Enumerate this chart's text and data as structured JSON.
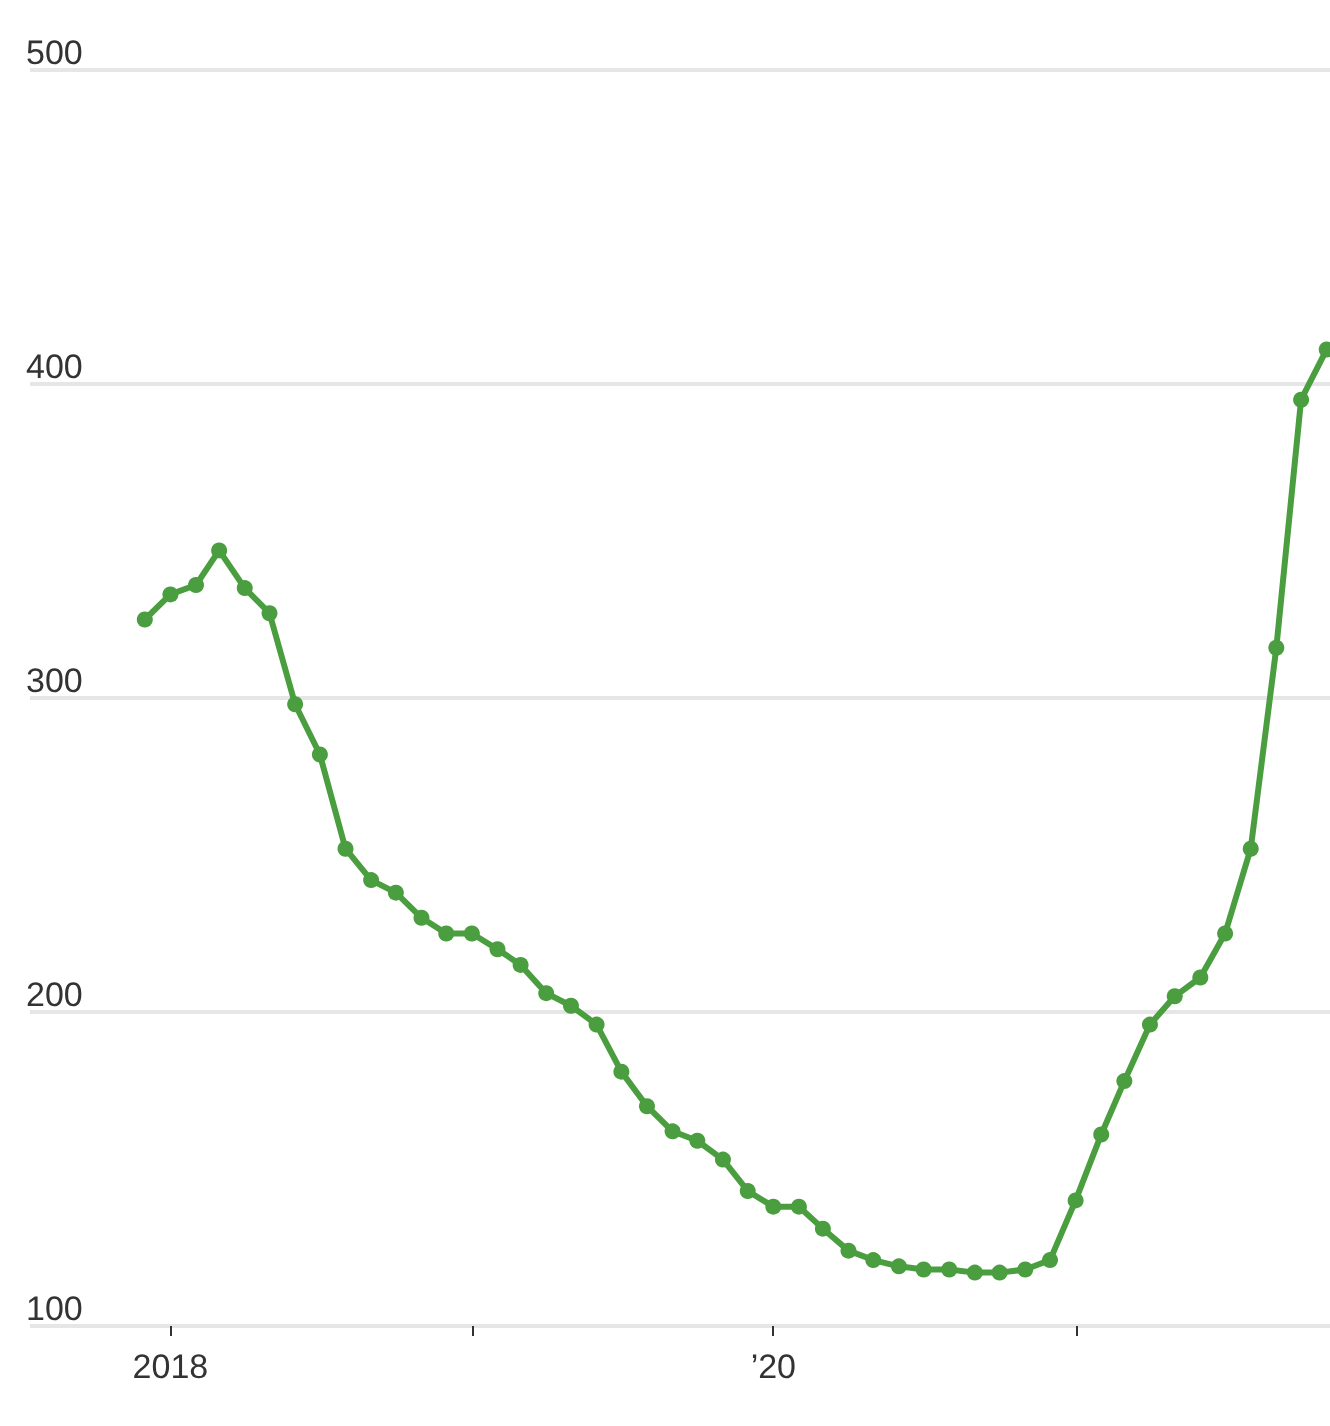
{
  "chart_data": {
    "type": "line",
    "x": [
      "2017-12",
      "2018-01",
      "2018-02",
      "2018-03",
      "2018-04",
      "2018-05",
      "2018-06",
      "2018-07",
      "2018-08",
      "2018-09",
      "2018-10",
      "2018-11",
      "2018-12",
      "2019-01",
      "2019-02",
      "2019-03",
      "2019-04",
      "2019-05",
      "2019-06",
      "2019-07",
      "2019-08",
      "2019-09",
      "2019-10",
      "2019-11",
      "2019-12",
      "2020-01",
      "2020-02",
      "2020-03",
      "2020-04",
      "2020-05",
      "2020-06",
      "2020-07",
      "2020-08",
      "2020-09",
      "2020-10",
      "2020-11",
      "2020-12",
      "2021-01",
      "2021-02",
      "2021-03",
      "2021-04",
      "2021-05",
      "2021-06",
      "2021-07",
      "2021-08",
      "2021-09",
      "2021-10",
      "2021-11"
    ],
    "series": [
      {
        "color": "#4a9e3f",
        "values": [
          325,
          333,
          336,
          347,
          335,
          327,
          298,
          282,
          252,
          242,
          238,
          230,
          225,
          225,
          220,
          215,
          206,
          202,
          196,
          181,
          170,
          162,
          159,
          153,
          143,
          138,
          138,
          131,
          124,
          121,
          119,
          118,
          118,
          117,
          117,
          118,
          121,
          140,
          161,
          178,
          196,
          205,
          211,
          225,
          252,
          316,
          395,
          411
        ]
      }
    ],
    "xlim": [
      "2017-07-15",
      "2021-11-05"
    ],
    "xticks": [
      {
        "value": "2018-01",
        "label": "2018"
      },
      {
        "value": "2019-01",
        "label": null
      },
      {
        "value": "2020-01",
        "label": "’20"
      },
      {
        "value": "2021-01",
        "label": null
      }
    ],
    "ylim": [
      100,
      500
    ],
    "yticks": [
      100,
      200,
      300,
      400,
      500
    ],
    "grid": "y",
    "marker": "circle",
    "line_style": "solid"
  }
}
